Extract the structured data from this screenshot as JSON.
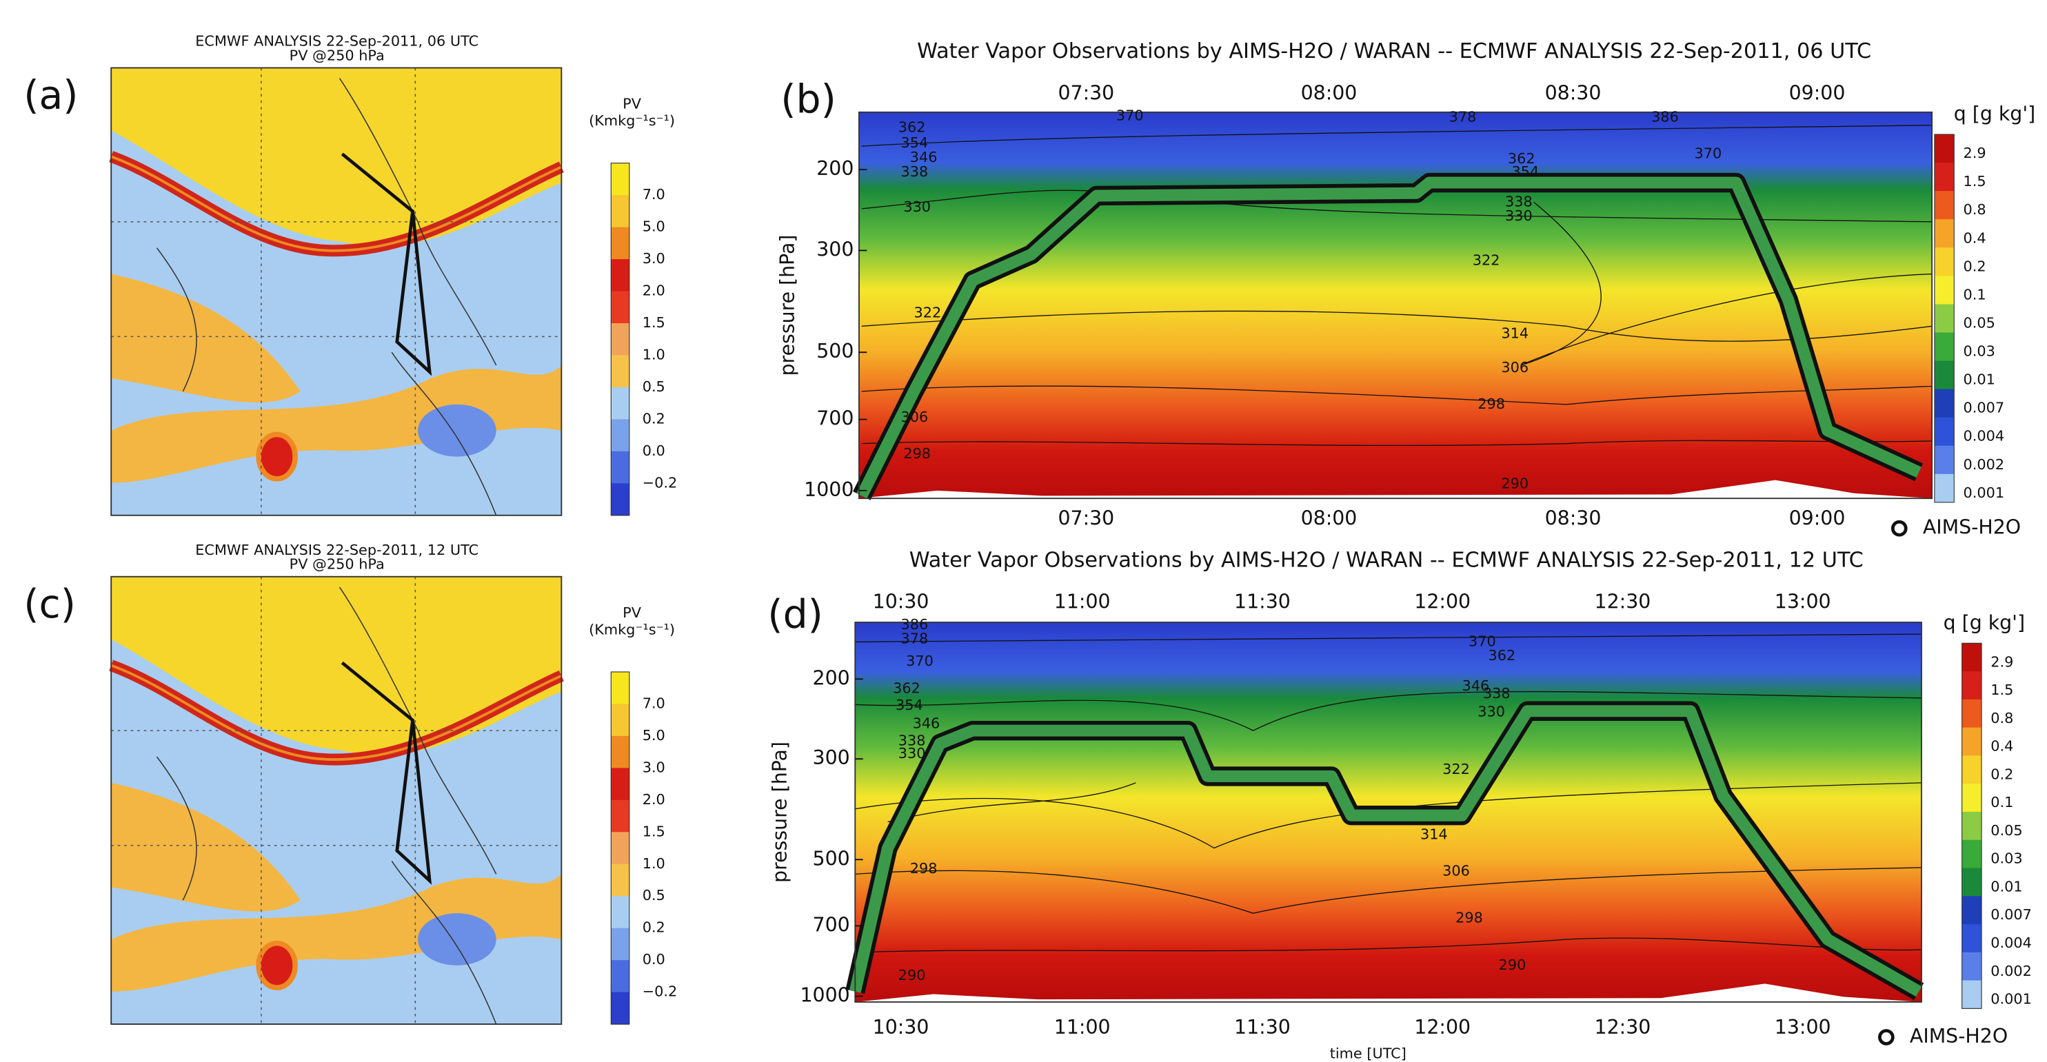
{
  "maps": [
    {
      "label": "(a)",
      "title": "ECMWF ANALYSIS 22-Sep-2011, 06 UTC",
      "subtitle": "PV @250 hPa",
      "colorbar_title": "PV",
      "colorbar_unit": "(Kmkg⁻¹s⁻¹)",
      "colorbar_labels": [
        "7.0",
        "5.0",
        "3.0",
        "2.0",
        "1.5",
        "1.0",
        "0.5",
        "0.2",
        "0.0",
        "−0.2"
      ]
    },
    {
      "label": "(c)",
      "title": "ECMWF ANALYSIS 22-Sep-2011, 12 UTC",
      "subtitle": "PV @250 hPa",
      "colorbar_title": "PV",
      "colorbar_unit": "(Kmkg⁻¹s⁻¹)",
      "colorbar_labels": [
        "7.0",
        "5.0",
        "3.0",
        "2.0",
        "1.5",
        "1.0",
        "0.5",
        "0.2",
        "0.0",
        "−0.2"
      ]
    }
  ],
  "profiles": [
    {
      "label": "(b)",
      "title": "Water Vapor Observations by AIMS-H2O / WARAN -- ECMWF ANALYSIS 22-Sep-2011, 06 UTC",
      "time_ticks": [
        "07:30",
        "08:00",
        "08:30",
        "09:00"
      ],
      "y_label": "pressure [hPa]",
      "ylim": [
        1040,
        150
      ],
      "log_scale": true,
      "yticks": [
        200,
        300,
        500,
        700,
        1000
      ],
      "colorbar_title": "q [g kg']",
      "colorbar_labels": [
        "2.9",
        "1.5",
        "0.8",
        "0.4",
        "0.2",
        "0.1",
        "0.05",
        "0.03",
        "0.01",
        "0.007",
        "0.004",
        "0.002",
        "0.001"
      ],
      "legend": "AIMS-H2O",
      "contour_labels": [
        "362",
        "354",
        "346",
        "338",
        "330",
        "370",
        "378",
        "386",
        "370",
        "362",
        "354",
        "338",
        "330",
        "322",
        "322",
        "314",
        "306",
        "298",
        "290",
        "306",
        "298"
      ]
    },
    {
      "label": "(d)",
      "title": "Water Vapor Observations by AIMS-H2O / WARAN -- ECMWF ANALYSIS 22-Sep-2011, 12 UTC",
      "time_ticks": [
        "10:30",
        "11:00",
        "11:30",
        "12:00",
        "12:30",
        "13:00"
      ],
      "y_label": "pressure [hPa]",
      "ylim": [
        1030,
        150
      ],
      "log_scale": true,
      "yticks": [
        200,
        300,
        500,
        700,
        1000
      ],
      "x_label": "time [UTC]",
      "colorbar_title": "q [g kg']",
      "colorbar_labels": [
        "2.9",
        "1.5",
        "0.8",
        "0.4",
        "0.2",
        "0.1",
        "0.05",
        "0.03",
        "0.01",
        "0.007",
        "0.004",
        "0.002",
        "0.001"
      ],
      "legend": "AIMS-H2O",
      "contour_labels": [
        "386",
        "378",
        "370",
        "362",
        "354",
        "346",
        "338",
        "330",
        "370",
        "362",
        "346",
        "338",
        "330",
        "322",
        "314",
        "306",
        "298",
        "298",
        "290",
        "290"
      ]
    }
  ]
}
